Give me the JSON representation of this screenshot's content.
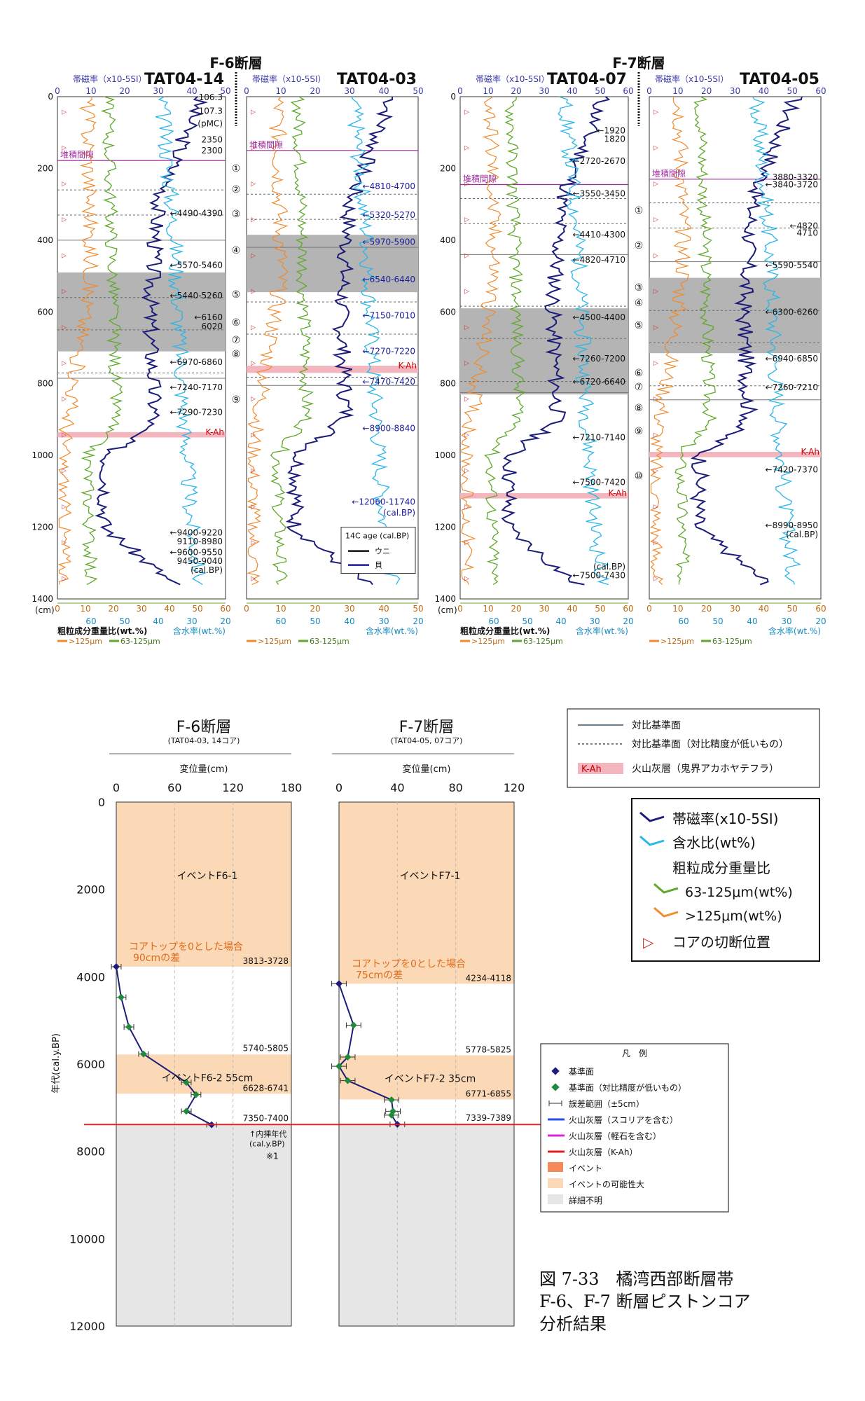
{
  "chart_data": [
    {
      "type": "line",
      "core": "TAT04-14",
      "fault": "F-6断層",
      "top_axis_label": "帯磁率（x10-5SI）",
      "top_ticks": [
        0,
        10,
        20,
        30,
        40,
        50
      ],
      "depth_ticks": [
        0,
        200,
        400,
        600,
        800,
        1000,
        1200,
        1400
      ],
      "depth_unit": "(cm)",
      "depth_range": [
        0,
        1400
      ],
      "bottom_ticks_coarse": [
        0,
        10,
        20,
        30,
        40,
        50,
        60
      ],
      "bottom_ticks_water": [
        60,
        50,
        40,
        30,
        20
      ],
      "bottom_label_coarse": "粗粒成分重量比(wt.%)",
      "bottom_label_water": "含水率(wt.%)",
      "bottom_legend": [
        ">125μm",
        "63-125μm"
      ],
      "gray_bands": [
        [
          490,
          710
        ]
      ],
      "ash_band": [
        935,
        950
      ],
      "ash_label": "K-Ah",
      "hiatus_depth": 178,
      "hiatus_label": "堆積間隙",
      "dated_labels": [
        {
          "depth": 2,
          "text": "106.3"
        },
        {
          "depth": 40,
          "text": "107.3"
        },
        {
          "depth": 75,
          "text": "(pMC)"
        },
        {
          "depth": 120,
          "text": "2350"
        },
        {
          "depth": 150,
          "text": "2300"
        },
        {
          "depth": 325,
          "text": "←4490-4390"
        },
        {
          "depth": 470,
          "text": "←5570-5460"
        },
        {
          "depth": 555,
          "text": "←5440-5260"
        },
        {
          "depth": 615,
          "text": "←6160"
        },
        {
          "depth": 640,
          "text": "6020"
        },
        {
          "depth": 740,
          "text": "←6970-6860"
        },
        {
          "depth": 810,
          "text": "←7240-7170"
        },
        {
          "depth": 880,
          "text": "←7290-7230"
        },
        {
          "depth": 1215,
          "text": "←9400-9220"
        },
        {
          "depth": 1240,
          "text": "9110-8980"
        },
        {
          "depth": 1270,
          "text": "←9600-9550"
        },
        {
          "depth": 1295,
          "text": "9450-9040"
        },
        {
          "depth": 1320,
          "text": "(cal.BP)"
        }
      ],
      "series": [
        {
          "name": "帯磁率",
          "values_at": [
            [
              0,
              46
            ],
            [
              100,
              28
            ],
            [
              200,
              35
            ],
            [
              300,
              28
            ],
            [
              400,
              34
            ],
            [
              500,
              26
            ],
            [
              600,
              27
            ],
            [
              700,
              24
            ],
            [
              800,
              30
            ],
            [
              900,
              27
            ],
            [
              950,
              40
            ],
            [
              1000,
              12
            ],
            [
              1100,
              10
            ],
            [
              1200,
              14
            ],
            [
              1300,
              34
            ],
            [
              1360,
              46
            ]
          ]
        },
        {
          "name": "含水率",
          "values_at": [
            [
              0,
              30
            ],
            [
              200,
              31
            ],
            [
              400,
              36
            ],
            [
              600,
              37
            ],
            [
              800,
              37
            ],
            [
              1000,
              36
            ],
            [
              1200,
              42
            ],
            [
              1360,
              44
            ]
          ]
        },
        {
          "name": "63-125μm",
          "values_at": [
            [
              0,
              13
            ],
            [
              200,
              15
            ],
            [
              400,
              15
            ],
            [
              600,
              18
            ],
            [
              800,
              17
            ],
            [
              950,
              18
            ],
            [
              1000,
              7
            ],
            [
              1200,
              6
            ],
            [
              1360,
              10
            ]
          ]
        },
        {
          "name": ">125μm",
          "values_at": [
            [
              0,
              8
            ],
            [
              200,
              10
            ],
            [
              400,
              9
            ],
            [
              600,
              7
            ],
            [
              800,
              4
            ],
            [
              1000,
              1
            ],
            [
              1200,
              0
            ],
            [
              1360,
              2
            ]
          ]
        }
      ]
    },
    {
      "type": "line",
      "core": "TAT04-03",
      "top_axis_label": "帯磁率（x10-5SI）",
      "top_ticks": [
        0,
        10,
        20,
        30,
        40,
        50
      ],
      "gray_bands": [
        [
          385,
          545
        ]
      ],
      "ash_band": [
        750,
        770
      ],
      "ash_label": "K-Ah",
      "hiatus_depth": 150,
      "hiatus_label": "堆積間隙",
      "dated_labels": [
        {
          "depth": 250,
          "text": "←4810-4700"
        },
        {
          "depth": 330,
          "text": "←5320-5270"
        },
        {
          "depth": 405,
          "text": "←5970-5900"
        },
        {
          "depth": 510,
          "text": "←6540-6440"
        },
        {
          "depth": 610,
          "text": "←7150-7010"
        },
        {
          "depth": 710,
          "text": "←7270-7220"
        },
        {
          "depth": 795,
          "text": "←7470-7420"
        },
        {
          "depth": 925,
          "text": "←8900-8840"
        },
        {
          "depth": 1130,
          "text": "←12060-11740"
        },
        {
          "depth": 1160,
          "text": "(cal.BP)"
        }
      ],
      "legend_title": "14C age (cal.BP)",
      "legend_entries": [
        "ウニ",
        "貝"
      ],
      "bottom_ticks_coarse": [
        0,
        10,
        20,
        30,
        40,
        50
      ],
      "bottom_ticks_water": [
        60,
        50,
        40,
        30,
        20
      ],
      "bottom_label_water": "含水率(wt.%)",
      "bottom_legend": [
        ">125μm",
        "63-125μm"
      ]
    },
    {
      "type": "line",
      "core": "TAT04-07",
      "fault": "F-7断層",
      "top_axis_label": "帯磁率（x10-5SI）",
      "top_ticks": [
        0,
        10,
        20,
        30,
        40,
        50,
        60
      ],
      "depth_ticks": [
        0,
        200,
        400,
        600,
        800,
        1000,
        1200,
        1400
      ],
      "depth_unit": "(cm)",
      "gray_bands": [
        [
          590,
          830
        ]
      ],
      "ash_band": [
        1105,
        1120
      ],
      "ash_label": "K-Ah",
      "hiatus_depth": 245,
      "hiatus_label": "堆積間隙",
      "dated_labels": [
        {
          "depth": 95,
          "text": "←1920"
        },
        {
          "depth": 118,
          "text": "1820"
        },
        {
          "depth": 180,
          "text": "←2720-2670"
        },
        {
          "depth": 270,
          "text": "←3550-3450"
        },
        {
          "depth": 385,
          "text": "←4410-4300"
        },
        {
          "depth": 455,
          "text": "←4820-4710"
        },
        {
          "depth": 615,
          "text": "←4500-4400"
        },
        {
          "depth": 730,
          "text": "←7260-7200"
        },
        {
          "depth": 795,
          "text": "←6720-6640"
        },
        {
          "depth": 950,
          "text": "←7210-7140"
        },
        {
          "depth": 1075,
          "text": "←7500-7420"
        },
        {
          "depth": 1310,
          "text": "(cal.BP)"
        },
        {
          "depth": 1335,
          "text": "←7500-7430"
        }
      ],
      "bottom_ticks_coarse": [
        0,
        10,
        20,
        30,
        40,
        50,
        60
      ],
      "bottom_ticks_water": [
        60,
        50,
        40,
        30,
        20
      ],
      "bottom_label_coarse": "粗粒成分重量比(wt.%)",
      "bottom_label_water": "含水率(wt.%)",
      "bottom_legend": [
        ">125μm",
        "63-125μm"
      ]
    },
    {
      "type": "line",
      "core": "TAT04-05",
      "top_axis_label": "帯磁率（x10-5SI）",
      "top_ticks": [
        0,
        10,
        20,
        30,
        40,
        50,
        60
      ],
      "gray_bands": [
        [
          505,
          715
        ]
      ],
      "ash_band": [
        990,
        1005
      ],
      "ash_label": "K-Ah",
      "hiatus_depth": 230,
      "hiatus_label": "堆積間隙",
      "dated_labels": [
        {
          "depth": 225,
          "text": "3880-3320"
        },
        {
          "depth": 245,
          "text": "←3840-3720"
        },
        {
          "depth": 360,
          "text": "←4820"
        },
        {
          "depth": 380,
          "text": "4710"
        },
        {
          "depth": 470,
          "text": "←5590-5540"
        },
        {
          "depth": 600,
          "text": "←6300-6260"
        },
        {
          "depth": 730,
          "text": "←6940-6850"
        },
        {
          "depth": 810,
          "text": "←7260-7210"
        },
        {
          "depth": 1040,
          "text": "←7420-7370"
        },
        {
          "depth": 1195,
          "text": "←8990-8950"
        },
        {
          "depth": 1220,
          "text": "(cal.BP)"
        }
      ],
      "bottom_ticks_coarse": [
        0,
        10,
        20,
        30,
        40,
        50,
        60
      ],
      "bottom_ticks_water": [
        60,
        50,
        40,
        30,
        20
      ],
      "bottom_label_water": "含水率(wt.%)",
      "bottom_legend": [
        ">125μm",
        "63-125μm"
      ]
    },
    {
      "type": "scatter",
      "title": "F-6断層",
      "subtitle": "(TAT04-03, 14コア)",
      "xlabel": "変位量(cm)",
      "ylabel": "年代(cal.y.BP)",
      "x_ticks": [
        0,
        60,
        120,
        180
      ],
      "y_ticks": [
        0,
        2000,
        4000,
        6000,
        8000,
        10000,
        12000
      ],
      "xlim": [
        0,
        180
      ],
      "ylim": [
        0,
        12000
      ],
      "bands": [
        {
          "range": [
            0,
            3770
          ],
          "kind": "possible",
          "label": "イベントF6-1"
        },
        {
          "range": [
            5780,
            6680
          ],
          "kind": "possible",
          "label": "イベントF6-2 55cm"
        },
        {
          "range": [
            7380,
            12000
          ],
          "kind": "unknown"
        }
      ],
      "note_title": "コアトップを0とした場合",
      "note_text": "90cmの差",
      "age_labels": [
        {
          "age": 3770,
          "text": "3813-3728"
        },
        {
          "age": 5770,
          "text": "5740-5805"
        },
        {
          "age": 6680,
          "text": "6628-6741"
        },
        {
          "age": 7375,
          "text": "7350-7400"
        }
      ],
      "interp_label": "↑内挿年代",
      "interp_unit": "(cal.y.BP)",
      "footnote": "※1",
      "points": [
        {
          "x": 0,
          "y": 3770,
          "err": 5
        },
        {
          "x": 5,
          "y": 4470,
          "err": 5
        },
        {
          "x": 13,
          "y": 5150,
          "err": 5
        },
        {
          "x": 28,
          "y": 5770,
          "err": 5
        },
        {
          "x": 72,
          "y": 6420,
          "err": 5
        },
        {
          "x": 82,
          "y": 6700,
          "err": 5
        },
        {
          "x": 72,
          "y": 7080,
          "err": 5
        },
        {
          "x": 98,
          "y": 7390,
          "err": 5
        }
      ]
    },
    {
      "type": "scatter",
      "title": "F-7断層",
      "subtitle": "(TAT04-05, 07コア)",
      "xlabel": "変位量(cm)",
      "x_ticks": [
        0,
        40,
        80,
        120
      ],
      "xlim": [
        0,
        120
      ],
      "ylim": [
        0,
        12000
      ],
      "bands": [
        {
          "range": [
            0,
            4160
          ],
          "kind": "possible",
          "label": "イベントF7-1"
        },
        {
          "range": [
            5800,
            6810
          ],
          "kind": "possible",
          "label": "イベントF7-2 35cm"
        },
        {
          "range": [
            7360,
            12000
          ],
          "kind": "unknown"
        }
      ],
      "note_title": "コアトップを0とした場合",
      "note_text": "75cmの差",
      "age_labels": [
        {
          "age": 4160,
          "text": "4234-4118"
        },
        {
          "age": 5800,
          "text": "5778-5825"
        },
        {
          "age": 6810,
          "text": "6771-6855"
        },
        {
          "age": 7360,
          "text": "7339-7389"
        }
      ],
      "points": [
        {
          "x": 0,
          "y": 4160,
          "err": 5
        },
        {
          "x": 10,
          "y": 5110,
          "err": 5
        },
        {
          "x": 6,
          "y": 5840,
          "err": 5
        },
        {
          "x": 0,
          "y": 6050,
          "err": 5
        },
        {
          "x": 6,
          "y": 6380,
          "err": 5
        },
        {
          "x": 36,
          "y": 6820,
          "err": 5
        },
        {
          "x": 37,
          "y": 7080,
          "err": 5
        },
        {
          "x": 36,
          "y": 7170,
          "err": 5
        },
        {
          "x": 40,
          "y": 7380,
          "err": 5
        }
      ]
    }
  ],
  "legend_lines": {
    "solid": "対比基準面",
    "dotted": "対比基準面（対比精度が低いもの）",
    "ash_tag": "K-Ah",
    "ash_text": "火山灰層（鬼界アカホヤテフラ）"
  },
  "legend_series": {
    "mag": "帯磁率(x10-5SI)",
    "water": "含水比(wt%)",
    "coarse_title": "粗粒成分重量比",
    "fine": "63-125μm(wt%)",
    "coarse": ">125μm(wt%)",
    "cut": "コアの切断位置"
  },
  "legend_small": {
    "title": "凡　例",
    "items": [
      "基準面",
      "基準面（対比精度が低いもの）",
      "誤差範囲（±5cm）",
      "火山灰層（スコリアを含む）",
      "火山灰層（軽石を含む）",
      "火山灰層（K-Ah）",
      "イベント",
      "イベントの可能性大",
      "詳細不明"
    ]
  },
  "section_numbers": [
    "①",
    "②",
    "③",
    "④",
    "⑤",
    "⑥",
    "⑦",
    "⑧",
    "⑨",
    "⑩"
  ],
  "caption": {
    "line1": "図 7-33　橘湾西部断層帯",
    "line2": "F-6、F-7 断層ピストンコア",
    "line3": "分析結果"
  },
  "colors": {
    "mag": "#1c1c7a",
    "water": "#29b6e8",
    "fine": "#5fa82a",
    "coarse": "#f08a2e",
    "ash": "#f4b6be",
    "gray_band": "#b4b4b4",
    "event_possible": "#fcd9b6",
    "unknown": "#e6e6e6",
    "hiatus": "#9c2a9c"
  }
}
